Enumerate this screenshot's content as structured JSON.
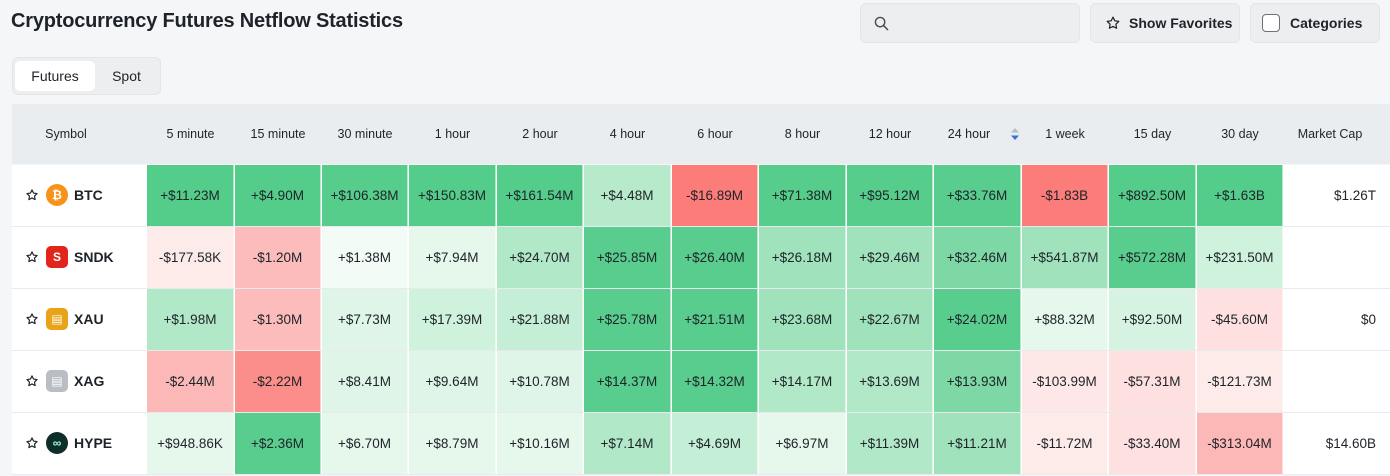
{
  "page": {
    "title": "Cryptocurrency Futures Netflow Statistics"
  },
  "search": {
    "placeholder": "",
    "value": ""
  },
  "buttons": {
    "show_favorites": "Show Favorites",
    "categories": "Categories"
  },
  "tabs": [
    "Futures",
    "Spot"
  ],
  "active_tab": "Futures",
  "table": {
    "columns": [
      "Symbol",
      "5 minute",
      "15 minute",
      "30 minute",
      "1 hour",
      "2 hour",
      "4 hour",
      "6 hour",
      "8 hour",
      "12 hour",
      "24 hour",
      "1 week",
      "15 day",
      "30 day",
      "Market Cap"
    ],
    "sorted_column": "24 hour",
    "rows": [
      {
        "symbol": "BTC",
        "icon": "bitcoin-logo",
        "values": [
          "+$11.23M",
          "+$4.90M",
          "+$106.38M",
          "+$150.83M",
          "+$161.54M",
          "+$4.48M",
          "-$16.89M",
          "+$71.38M",
          "+$95.12M",
          "+$33.76M",
          "-$1.83B",
          "+$892.50M",
          "+$1.63B"
        ],
        "colors": [
          "#55cd8a",
          "#55cd8a",
          "#57cd8c",
          "#55cd8a",
          "#55cd8a",
          "#b6eacb",
          "#fb7c79",
          "#57cd8c",
          "#57cd8c",
          "#59cd8e",
          "#fb7c79",
          "#55cd8a",
          "#55cd8a"
        ],
        "market_cap": "$1.26T"
      },
      {
        "symbol": "SNDK",
        "icon": "sandisk-logo",
        "values": [
          "-$177.58K",
          "-$1.20M",
          "+$1.38M",
          "+$7.94M",
          "+$24.70M",
          "+$25.85M",
          "+$26.40M",
          "+$26.18M",
          "+$29.46M",
          "+$32.46M",
          "+$541.87M",
          "+$572.28M",
          "+$231.50M"
        ],
        "colors": [
          "#fdebea",
          "#fbbcbb",
          "#f2fbf5",
          "#e6f7ec",
          "#b1e8c8",
          "#59cd8e",
          "#59cd8e",
          "#9fe2bb",
          "#9fe2bb",
          "#7dd8a5",
          "#9fe2bb",
          "#59cd8e",
          "#cff2dd"
        ],
        "market_cap": ""
      },
      {
        "symbol": "XAU",
        "icon": "gold-bars-logo",
        "values": [
          "+$1.98M",
          "-$1.30M",
          "+$7.73M",
          "+$17.39M",
          "+$21.88M",
          "+$25.78M",
          "+$21.51M",
          "+$23.68M",
          "+$22.67M",
          "+$24.02M",
          "+$88.32M",
          "+$92.50M",
          "-$45.60M"
        ],
        "colors": [
          "#b1e8c8",
          "#fbbcbb",
          "#dff5e8",
          "#cff2dd",
          "#c4eed5",
          "#59cd8e",
          "#59cd8e",
          "#9fe2bb",
          "#9fe2bb",
          "#59cd8e",
          "#e6f7ec",
          "#d6f3e2",
          "#fde0df"
        ],
        "market_cap": "$0"
      },
      {
        "symbol": "XAG",
        "icon": "silver-bars-logo",
        "values": [
          "-$2.44M",
          "-$2.22M",
          "+$8.41M",
          "+$9.64M",
          "+$10.78M",
          "+$14.37M",
          "+$14.32M",
          "+$14.17M",
          "+$13.69M",
          "+$13.93M",
          "-$103.99M",
          "-$57.31M",
          "-$121.73M"
        ],
        "colors": [
          "#fbb8b7",
          "#fb8d8a",
          "#dff5e8",
          "#dff5e8",
          "#dff5e8",
          "#59cd8e",
          "#59cd8e",
          "#b1e8c8",
          "#b1e8c8",
          "#7dd8a5",
          "#fde8e7",
          "#fde0df",
          "#fdebea"
        ],
        "market_cap": ""
      },
      {
        "symbol": "HYPE",
        "icon": "hyperliquid-logo",
        "values": [
          "+$948.86K",
          "+$2.36M",
          "+$6.70M",
          "+$8.79M",
          "+$10.16M",
          "+$7.14M",
          "+$4.69M",
          "+$6.97M",
          "+$11.39M",
          "+$11.21M",
          "-$11.72M",
          "-$33.40M",
          "-$313.04M"
        ],
        "colors": [
          "#e6f7ec",
          "#59cd8e",
          "#e6f7ec",
          "#e6f7ec",
          "#e6f7ec",
          "#b1e8c8",
          "#c4eed5",
          "#e6f7ec",
          "#b1e8c8",
          "#9fe2bb",
          "#fdebea",
          "#fde0df",
          "#fbb8b7"
        ],
        "market_cap": "$14.60B"
      }
    ]
  }
}
